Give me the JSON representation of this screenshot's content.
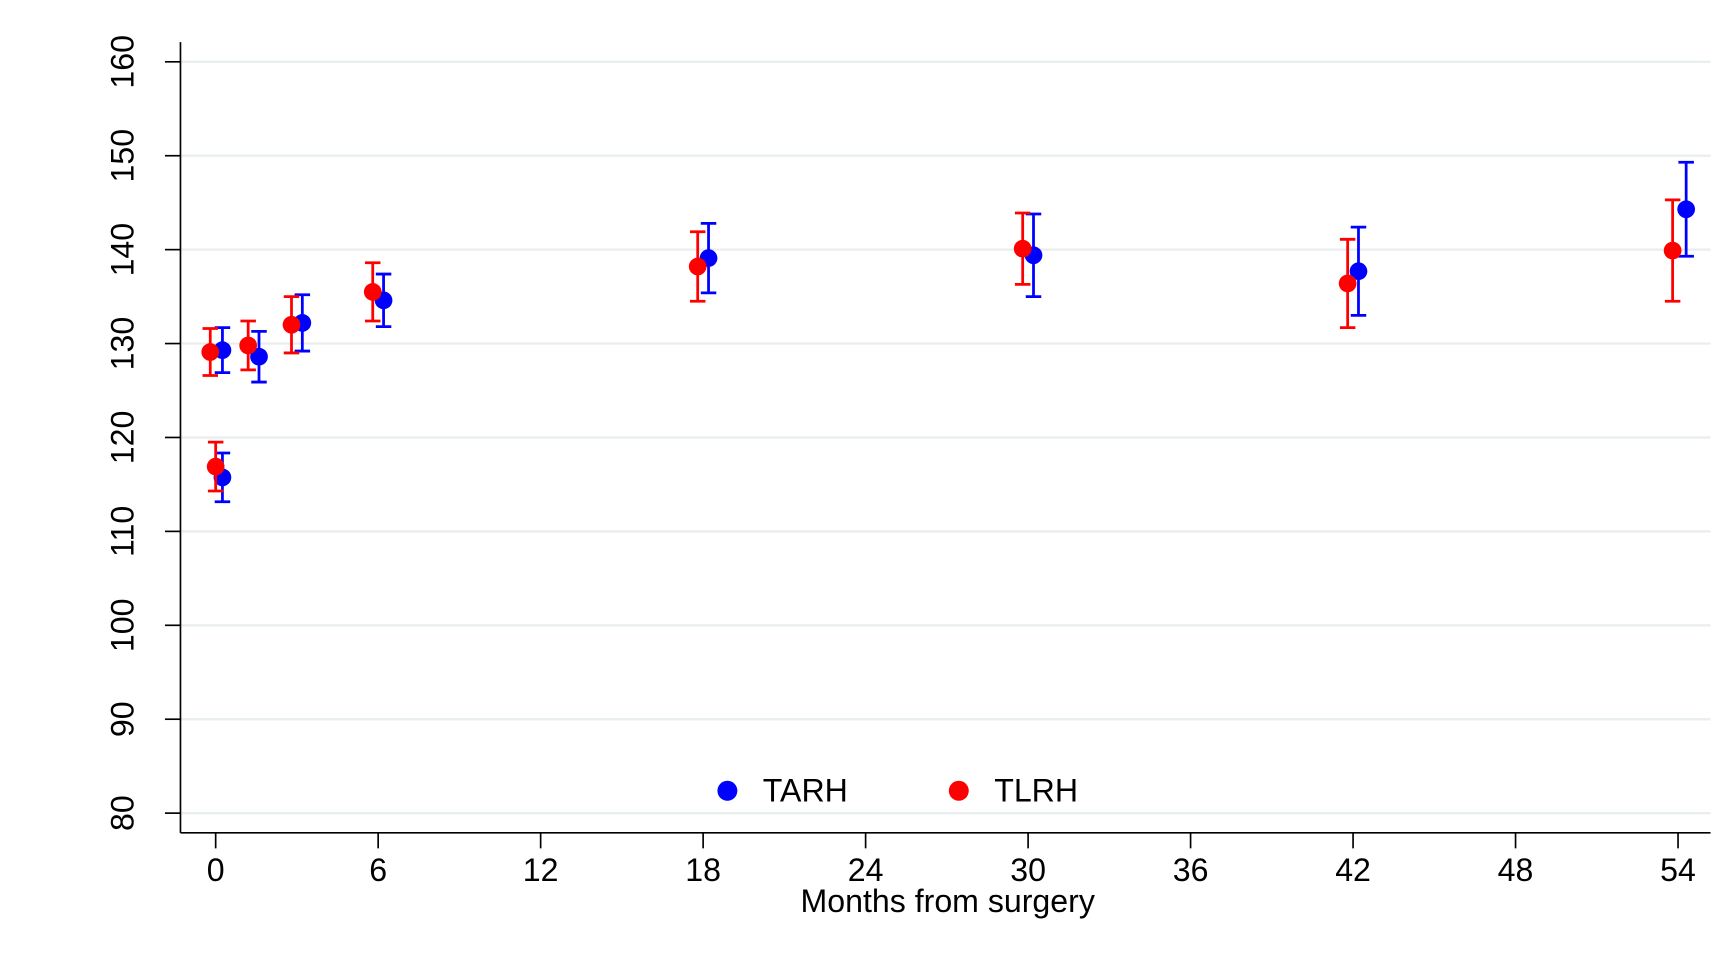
{
  "chart_data": {
    "type": "scatter",
    "x_label": "Months from surgery",
    "xlim": [
      -1.3,
      55.2
    ],
    "xticks": [
      0,
      6,
      12,
      18,
      24,
      30,
      36,
      42,
      48,
      54
    ],
    "ylim": [
      77.9,
      162.1
    ],
    "yticks": [
      80,
      90,
      100,
      110,
      120,
      130,
      140,
      150,
      160
    ],
    "grid": true,
    "legend": "bottom",
    "series": [
      {
        "name": "TARH",
        "color": "#0000ff",
        "x": [
          0.25,
          0.25,
          1.6,
          3.2,
          6.2,
          18.2,
          30.2,
          42.2,
          54.3
        ],
        "values": [
          115.75,
          129.3,
          128.6,
          132.2,
          134.6,
          139.1,
          139.4,
          137.7,
          144.3
        ],
        "errors": [
          2.6,
          2.4,
          2.7,
          3.0,
          2.8,
          3.7,
          4.4,
          4.7,
          5.0
        ]
      },
      {
        "name": "TLRH",
        "color": "#ff0000",
        "x": [
          -0.2,
          0,
          1.2,
          2.8,
          5.8,
          17.8,
          29.8,
          41.8,
          53.8
        ],
        "values": [
          129.1,
          116.9,
          129.8,
          132.0,
          135.5,
          138.2,
          140.1,
          136.4,
          139.9
        ],
        "errors": [
          2.5,
          2.6,
          2.6,
          3.0,
          3.1,
          3.7,
          3.8,
          4.7,
          5.4
        ]
      }
    ]
  }
}
